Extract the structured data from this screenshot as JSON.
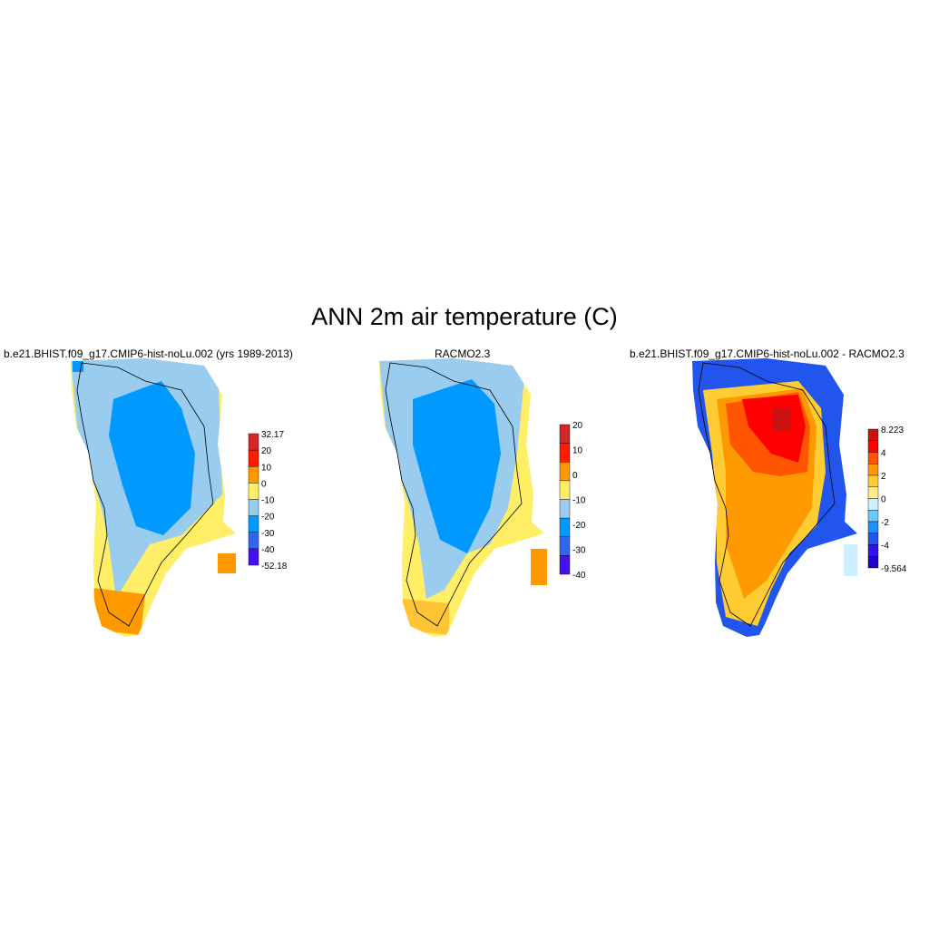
{
  "figure": {
    "title": "ANN 2m air temperature (C)"
  },
  "panels": [
    {
      "title": "b.e21.BHIST.f09_g17.CMIP6-hist-noLu.002 (yrs 1989-2013)",
      "colorbar": {
        "labels": [
          "32.17",
          "20",
          "10",
          "0",
          "-10",
          "-20",
          "-30",
          "-40",
          "-52.18"
        ],
        "colors": [
          "#d62728",
          "#ff1a00",
          "#ff9900",
          "#ffee66",
          "#99ccee",
          "#0099ff",
          "#3366ee",
          "#4411ee"
        ]
      }
    },
    {
      "title": "RACMO2.3",
      "colorbar": {
        "labels": [
          "20",
          "10",
          "0",
          "-10",
          "-20",
          "-30",
          "-40"
        ],
        "colors": [
          "#d62728",
          "#ff1a00",
          "#ff9900",
          "#ffee66",
          "#99ccee",
          "#0099ff",
          "#3366ee",
          "#4411ee"
        ]
      }
    },
    {
      "title": "b.e21.BHIST.f09_g17.CMIP6-hist-noLu.002 - RACMO2.3",
      "colorbar": {
        "labels": [
          "8.223",
          "4",
          "2",
          "0",
          "-2",
          "-4",
          "-9.564"
        ],
        "colors": [
          "#cc1111",
          "#ff0000",
          "#ff5500",
          "#ff9900",
          "#ffcc33",
          "#ffee88",
          "#cceeff",
          "#66ccff",
          "#1e90ff",
          "#2255ee",
          "#3311ee",
          "#2200cc"
        ]
      }
    }
  ]
}
